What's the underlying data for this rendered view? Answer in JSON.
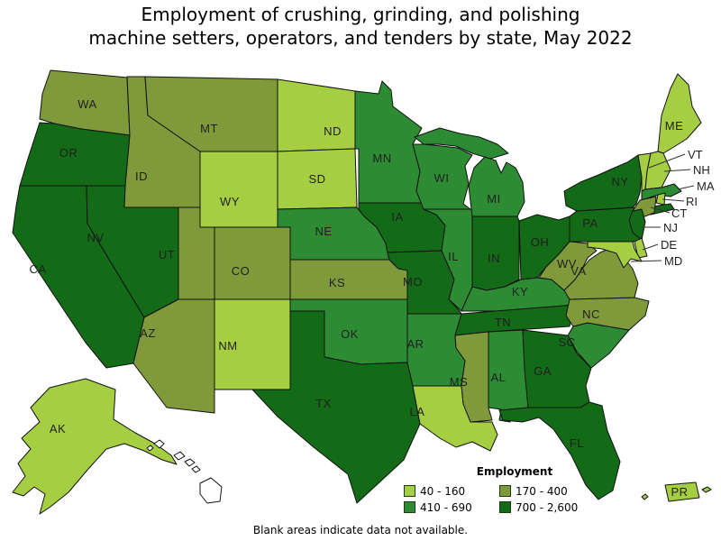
{
  "title_line1": "Employment of crushing, grinding, and polishing",
  "title_line2": "machine setters, operators, and tenders by state, May 2022",
  "footnote": "Blank areas indicate data not available.",
  "legend": {
    "title": "Employment",
    "classes": [
      {
        "label": "40 - 160",
        "color": "#a5ce43"
      },
      {
        "label": "170 - 400",
        "color": "#7f9a3b"
      },
      {
        "label": "410 - 690",
        "color": "#2c8b33"
      },
      {
        "label": "700 - 2,600",
        "color": "#136a17"
      }
    ],
    "no_data_color": "#ffffff"
  },
  "chart_data": {
    "type": "choropleth-map",
    "region": "United States",
    "title": "Employment of crushing, grinding, and polishing machine setters, operators, and tenders by state, May 2022",
    "legend_title": "Employment",
    "class_labels": [
      "40 - 160",
      "170 - 400",
      "410 - 690",
      "700 - 2,600"
    ],
    "states": [
      {
        "abbr": "WA",
        "class": 1
      },
      {
        "abbr": "OR",
        "class": 3
      },
      {
        "abbr": "CA",
        "class": 3
      },
      {
        "abbr": "NV",
        "class": 3
      },
      {
        "abbr": "ID",
        "class": 1
      },
      {
        "abbr": "MT",
        "class": 1
      },
      {
        "abbr": "WY",
        "class": 0
      },
      {
        "abbr": "UT",
        "class": 1
      },
      {
        "abbr": "CO",
        "class": 1
      },
      {
        "abbr": "AZ",
        "class": 1
      },
      {
        "abbr": "NM",
        "class": 0
      },
      {
        "abbr": "ND",
        "class": 0
      },
      {
        "abbr": "SD",
        "class": 0
      },
      {
        "abbr": "NE",
        "class": 2
      },
      {
        "abbr": "KS",
        "class": 1
      },
      {
        "abbr": "OK",
        "class": 2
      },
      {
        "abbr": "TX",
        "class": 3
      },
      {
        "abbr": "MN",
        "class": 2
      },
      {
        "abbr": "IA",
        "class": 3
      },
      {
        "abbr": "MO",
        "class": 3
      },
      {
        "abbr": "AR",
        "class": 2
      },
      {
        "abbr": "LA",
        "class": 0
      },
      {
        "abbr": "WI",
        "class": 2
      },
      {
        "abbr": "IL",
        "class": 2
      },
      {
        "abbr": "MI",
        "class": 2
      },
      {
        "abbr": "IN",
        "class": 3
      },
      {
        "abbr": "OH",
        "class": 3
      },
      {
        "abbr": "KY",
        "class": 2
      },
      {
        "abbr": "TN",
        "class": 3
      },
      {
        "abbr": "MS",
        "class": 1
      },
      {
        "abbr": "AL",
        "class": 2
      },
      {
        "abbr": "GA",
        "class": 3
      },
      {
        "abbr": "FL",
        "class": 3
      },
      {
        "abbr": "SC",
        "class": 2
      },
      {
        "abbr": "NC",
        "class": 1
      },
      {
        "abbr": "VA",
        "class": 1
      },
      {
        "abbr": "WV",
        "class": 1
      },
      {
        "abbr": "PA",
        "class": 3
      },
      {
        "abbr": "NY",
        "class": 3
      },
      {
        "abbr": "ME",
        "class": 0
      },
      {
        "abbr": "VT",
        "class": 0
      },
      {
        "abbr": "NH",
        "class": 0
      },
      {
        "abbr": "MA",
        "class": 2
      },
      {
        "abbr": "RI",
        "class": 0
      },
      {
        "abbr": "CT",
        "class": 1
      },
      {
        "abbr": "NJ",
        "class": 3
      },
      {
        "abbr": "DE",
        "class": 0
      },
      {
        "abbr": "MD",
        "class": 0
      },
      {
        "abbr": "AK",
        "class": 0
      },
      {
        "abbr": "PR",
        "class": 0
      }
    ],
    "no_data_states": [
      "HI"
    ]
  }
}
